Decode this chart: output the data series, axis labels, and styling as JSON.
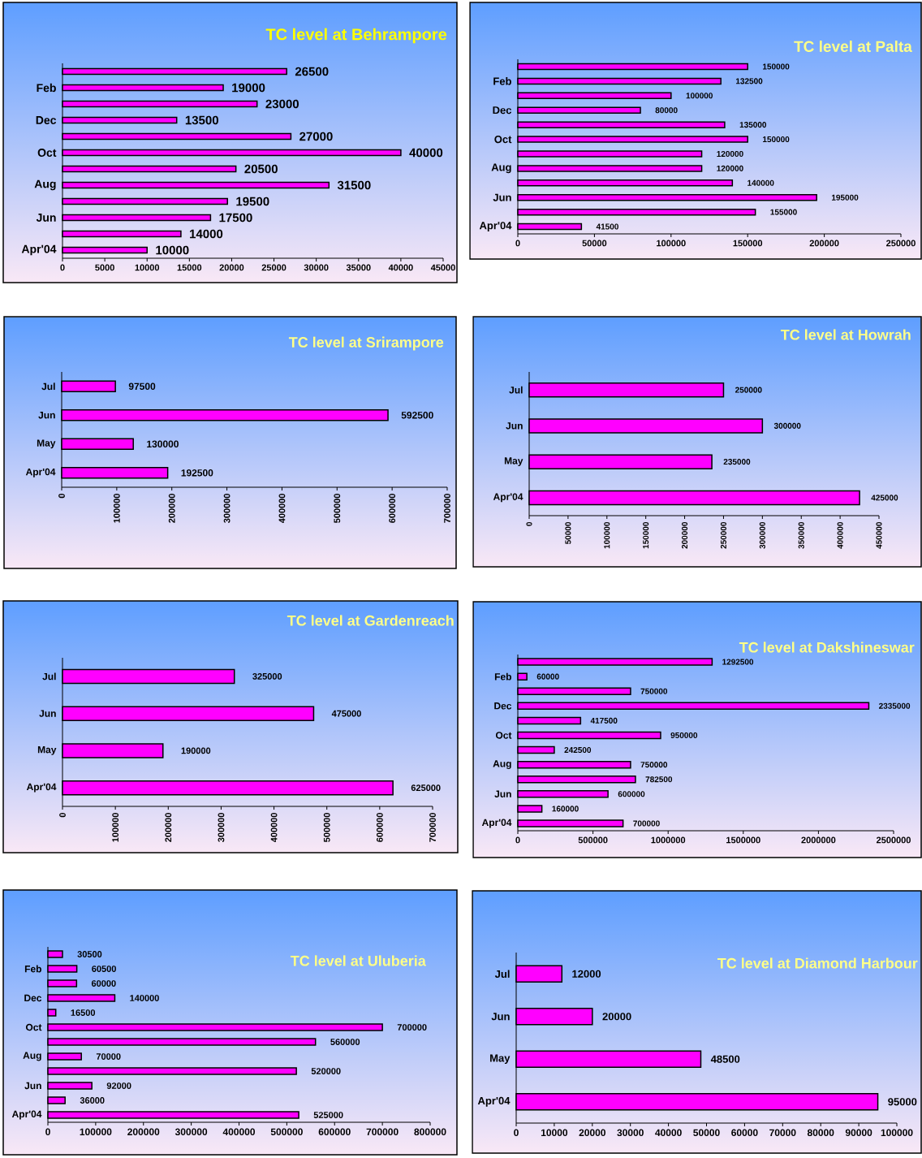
{
  "chart_data": [
    {
      "type": "bar",
      "orientation": "horizontal",
      "title": "TC level at Behrampore",
      "categories": [
        null,
        "Feb",
        null,
        "Dec",
        null,
        "Oct",
        null,
        "Aug",
        null,
        "Jun",
        null,
        "Apr'04"
      ],
      "values": [
        26500,
        19000,
        23000,
        13500,
        27000,
        40000,
        20500,
        31500,
        19500,
        17500,
        14000,
        10000
      ],
      "color": "#ff00ff",
      "xlim": [
        0,
        45000
      ],
      "xticks": [
        0,
        5000,
        10000,
        15000,
        20000,
        25000,
        30000,
        35000,
        40000,
        45000
      ],
      "data_labels": true
    },
    {
      "type": "bar",
      "orientation": "horizontal",
      "title": "TC level at Palta",
      "categories": [
        null,
        "Feb",
        null,
        "Dec",
        null,
        "Oct",
        null,
        "Aug",
        null,
        "Jun",
        null,
        "Apr'04"
      ],
      "values": [
        150000,
        132500,
        100000,
        80000,
        135000,
        150000,
        120000,
        120000,
        140000,
        195000,
        155000,
        41500
      ],
      "color": "#ff00ff",
      "xlim": [
        0,
        250000
      ],
      "xticks": [
        0,
        50000,
        100000,
        150000,
        200000,
        250000
      ],
      "data_labels": true
    },
    {
      "type": "bar",
      "orientation": "horizontal",
      "title": "TC level at Srirampore",
      "categories": [
        "Jul",
        "Jun",
        "May",
        "Apr'04"
      ],
      "values": [
        97500,
        592500,
        130000,
        192500
      ],
      "color": "#ff00ff",
      "xlim": [
        0,
        700000
      ],
      "xticks": [
        0,
        100000,
        200000,
        300000,
        400000,
        500000,
        600000,
        700000
      ],
      "data_labels": true
    },
    {
      "type": "bar",
      "orientation": "horizontal",
      "title": "TC level at Howrah",
      "categories": [
        "Jul",
        "Jun",
        "May",
        "Apr'04"
      ],
      "values": [
        250000,
        300000,
        235000,
        425000
      ],
      "color": "#ff00ff",
      "xlim": [
        0,
        450000
      ],
      "xticks": [
        0,
        50000,
        100000,
        150000,
        200000,
        250000,
        300000,
        350000,
        400000,
        450000
      ],
      "data_labels": true
    },
    {
      "type": "bar",
      "orientation": "horizontal",
      "title": "TC level at Gardenreach",
      "categories": [
        "Jul",
        "Jun",
        "May",
        "Apr'04"
      ],
      "values": [
        325000,
        475000,
        190000,
        625000
      ],
      "color": "#ff00ff",
      "xlim": [
        0,
        700000
      ],
      "xticks": [
        0,
        100000,
        200000,
        300000,
        400000,
        500000,
        600000,
        700000
      ],
      "data_labels": true
    },
    {
      "type": "bar",
      "orientation": "horizontal",
      "title": "TC level at Dakshineswar",
      "categories": [
        null,
        "Feb",
        null,
        "Dec",
        null,
        "Oct",
        null,
        "Aug",
        null,
        "Jun",
        null,
        "Apr'04"
      ],
      "values": [
        1292500,
        60000,
        750000,
        2335000,
        417500,
        950000,
        242500,
        750000,
        782500,
        600000,
        160000,
        700000
      ],
      "color": "#ff00ff",
      "xlim": [
        0,
        2500000
      ],
      "xticks": [
        0,
        500000,
        1000000,
        1500000,
        2000000,
        2500000
      ],
      "data_labels": true
    },
    {
      "type": "bar",
      "orientation": "horizontal",
      "title": "TC level at Uluberia",
      "categories": [
        null,
        "Feb",
        null,
        "Dec",
        null,
        "Oct",
        null,
        "Aug",
        null,
        "Jun",
        null,
        "Apr'04"
      ],
      "values": [
        30500,
        60500,
        60000,
        140000,
        16500,
        700000,
        560000,
        70000,
        520000,
        92000,
        36000,
        525000
      ],
      "color": "#ff00ff",
      "xlim": [
        0,
        800000
      ],
      "xticks": [
        0,
        100000,
        200000,
        300000,
        400000,
        500000,
        600000,
        700000,
        800000
      ],
      "data_labels": true
    },
    {
      "type": "bar",
      "orientation": "horizontal",
      "title": "TC level at Diamond Harbour",
      "categories": [
        "Jul",
        "Jun",
        "May",
        "Apr'04"
      ],
      "values": [
        12000,
        20000,
        48500,
        95000
      ],
      "color": "#ff00ff",
      "xlim": [
        0,
        100000
      ],
      "xticks": [
        0,
        10000,
        20000,
        30000,
        40000,
        50000,
        60000,
        70000,
        80000,
        90000,
        100000
      ],
      "data_labels": true
    }
  ]
}
